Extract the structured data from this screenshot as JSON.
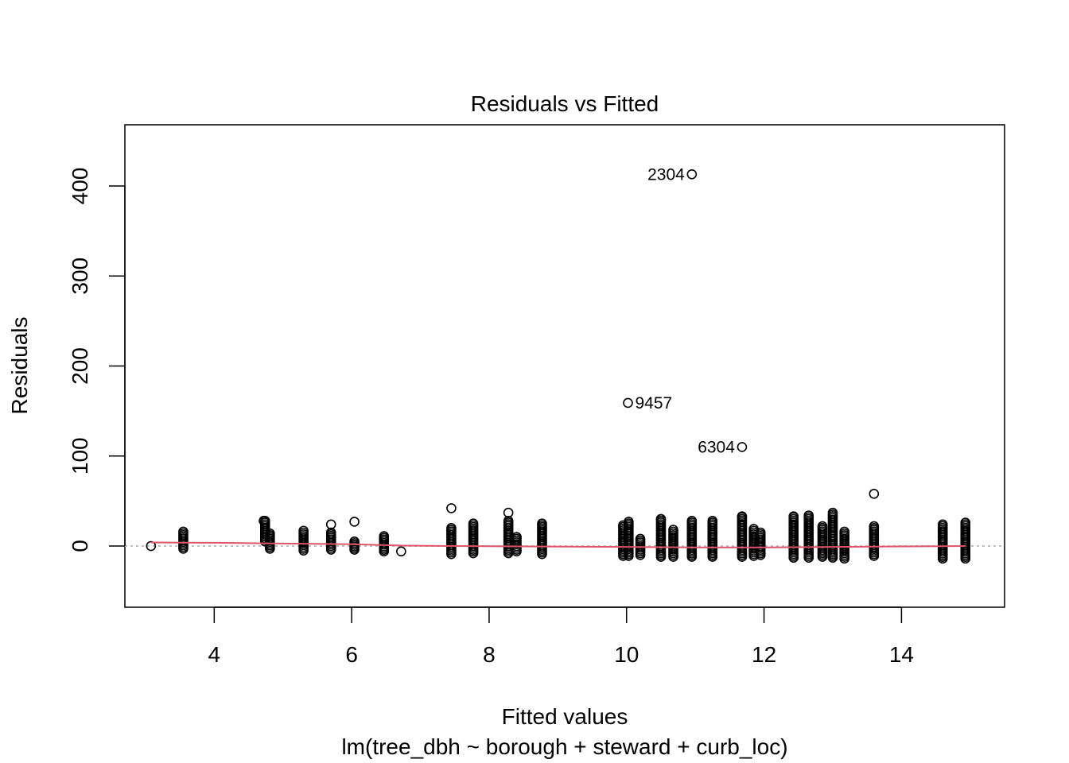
{
  "chart_data": {
    "type": "scatter",
    "title": "Residuals vs Fitted",
    "subtitle": "lm(tree_dbh ~ borough + steward + curb_loc)",
    "xlabel": "Fitted values",
    "ylabel": "Residuals",
    "xlim": [
      2.7,
      15.5
    ],
    "ylim": [
      -68,
      468
    ],
    "x_ticks": [
      4,
      6,
      8,
      10,
      12,
      14
    ],
    "y_ticks": [
      0,
      100,
      200,
      300,
      400
    ],
    "grid": false,
    "reference_line_y": 0,
    "colors": {
      "points": "#000000",
      "smooth": "#DF536B",
      "reference": "#BEBEBE"
    },
    "clusters": [
      {
        "x": 3.08,
        "ymin": 0,
        "ymax": 0
      },
      {
        "x": 3.55,
        "ymin": -3,
        "ymax": 16
      },
      {
        "x": 4.74,
        "ymin": 5,
        "ymax": 28
      },
      {
        "x": 4.81,
        "ymin": -3,
        "ymax": 14
      },
      {
        "x": 5.3,
        "ymin": -5,
        "ymax": 17
      },
      {
        "x": 5.7,
        "ymin": -4,
        "ymax": 15
      },
      {
        "x": 6.04,
        "ymin": -4,
        "ymax": 5
      },
      {
        "x": 6.47,
        "ymin": -6,
        "ymax": 11
      },
      {
        "x": 6.72,
        "ymin": -6,
        "ymax": -6
      },
      {
        "x": 7.45,
        "ymin": -9,
        "ymax": 20
      },
      {
        "x": 7.77,
        "ymin": -8,
        "ymax": 25
      },
      {
        "x": 8.28,
        "ymin": -8,
        "ymax": 28
      },
      {
        "x": 8.4,
        "ymin": -6,
        "ymax": 10
      },
      {
        "x": 8.77,
        "ymin": -9,
        "ymax": 25
      },
      {
        "x": 9.95,
        "ymin": -11,
        "ymax": 23
      },
      {
        "x": 10.03,
        "ymin": -11,
        "ymax": 27
      },
      {
        "x": 10.2,
        "ymin": -10,
        "ymax": 8
      },
      {
        "x": 10.5,
        "ymin": -12,
        "ymax": 30
      },
      {
        "x": 10.68,
        "ymin": -12,
        "ymax": 18
      },
      {
        "x": 10.95,
        "ymin": -12,
        "ymax": 28
      },
      {
        "x": 11.25,
        "ymin": -12,
        "ymax": 28
      },
      {
        "x": 11.68,
        "ymin": -12,
        "ymax": 32
      },
      {
        "x": 11.85,
        "ymin": -11,
        "ymax": 19
      },
      {
        "x": 11.95,
        "ymin": -10,
        "ymax": 15
      },
      {
        "x": 12.43,
        "ymin": -13,
        "ymax": 32
      },
      {
        "x": 12.65,
        "ymin": -13,
        "ymax": 34
      },
      {
        "x": 12.85,
        "ymin": -12,
        "ymax": 22
      },
      {
        "x": 13.0,
        "ymin": -13,
        "ymax": 37
      },
      {
        "x": 13.17,
        "ymin": -14,
        "ymax": 16
      },
      {
        "x": 13.6,
        "ymin": -11,
        "ymax": 22
      },
      {
        "x": 14.6,
        "ymin": -14,
        "ymax": 24
      },
      {
        "x": 14.93,
        "ymin": -14,
        "ymax": 26
      }
    ],
    "points": [
      {
        "x": 4.72,
        "y": 28
      },
      {
        "x": 5.7,
        "y": 24
      },
      {
        "x": 6.04,
        "y": 27
      },
      {
        "x": 7.45,
        "y": 42
      },
      {
        "x": 8.28,
        "y": 37
      },
      {
        "x": 8.4,
        "y": 10
      },
      {
        "x": 10.5,
        "y": 30
      },
      {
        "x": 11.68,
        "y": 33
      },
      {
        "x": 12.43,
        "y": 33
      },
      {
        "x": 13.6,
        "y": 58
      }
    ],
    "labeled_points": [
      {
        "x": 10.95,
        "y": 413,
        "label": "2304",
        "side": "left"
      },
      {
        "x": 10.02,
        "y": 159,
        "label": "9457",
        "side": "right"
      },
      {
        "x": 11.68,
        "y": 110,
        "label": "6304",
        "side": "left"
      }
    ],
    "smooth": [
      {
        "x": 3.08,
        "y": 4
      },
      {
        "x": 4.0,
        "y": 3.6
      },
      {
        "x": 5.0,
        "y": 2.8
      },
      {
        "x": 6.0,
        "y": 2
      },
      {
        "x": 6.7,
        "y": 0.5
      },
      {
        "x": 7.5,
        "y": 0
      },
      {
        "x": 8.5,
        "y": -0.5
      },
      {
        "x": 10.0,
        "y": -1
      },
      {
        "x": 11.0,
        "y": -1.5
      },
      {
        "x": 12.0,
        "y": -1.5
      },
      {
        "x": 13.0,
        "y": -1
      },
      {
        "x": 14.0,
        "y": -0.5
      },
      {
        "x": 14.93,
        "y": 0
      }
    ]
  }
}
